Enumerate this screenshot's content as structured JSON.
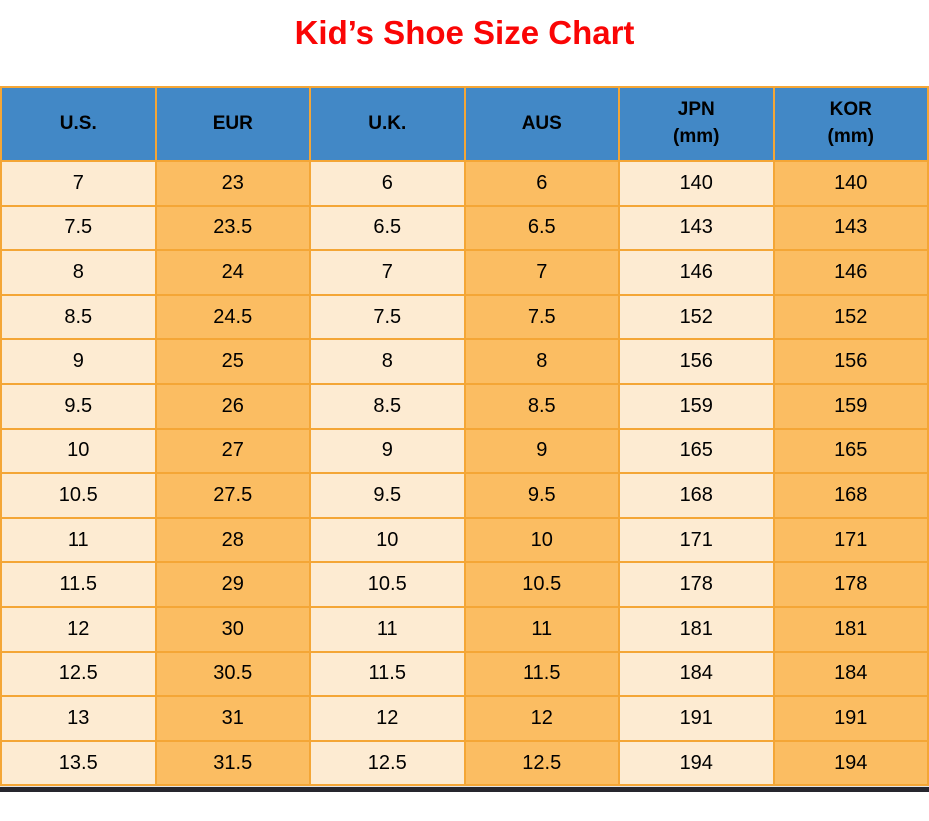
{
  "page": {
    "title": "Kid’s Shoe Size Chart"
  },
  "chart_data": {
    "type": "table",
    "title": "Kid’s Shoe Size Chart",
    "columns": [
      {
        "label": "U.S.",
        "unit": ""
      },
      {
        "label": "EUR",
        "unit": ""
      },
      {
        "label": "U.K.",
        "unit": ""
      },
      {
        "label": "AUS",
        "unit": ""
      },
      {
        "label": "JPN",
        "unit": "(mm)"
      },
      {
        "label": "KOR",
        "unit": "(mm)"
      }
    ],
    "rows": [
      [
        "7",
        "23",
        "6",
        "6",
        "140",
        "140"
      ],
      [
        "7.5",
        "23.5",
        "6.5",
        "6.5",
        "143",
        "143"
      ],
      [
        "8",
        "24",
        "7",
        "7",
        "146",
        "146"
      ],
      [
        "8.5",
        "24.5",
        "7.5",
        "7.5",
        "152",
        "152"
      ],
      [
        "9",
        "25",
        "8",
        "8",
        "156",
        "156"
      ],
      [
        "9.5",
        "26",
        "8.5",
        "8.5",
        "159",
        "159"
      ],
      [
        "10",
        "27",
        "9",
        "9",
        "165",
        "165"
      ],
      [
        "10.5",
        "27.5",
        "9.5",
        "9.5",
        "168",
        "168"
      ],
      [
        "11",
        "28",
        "10",
        "10",
        "171",
        "171"
      ],
      [
        "11.5",
        "29",
        "10.5",
        "10.5",
        "178",
        "178"
      ],
      [
        "12",
        "30",
        "11",
        "11",
        "181",
        "181"
      ],
      [
        "12.5",
        "30.5",
        "11.5",
        "11.5",
        "184",
        "184"
      ],
      [
        "13",
        "31",
        "12",
        "12",
        "191",
        "191"
      ],
      [
        "13.5",
        "31.5",
        "12.5",
        "12.5",
        "194",
        "194"
      ]
    ]
  },
  "colors": {
    "title_red": "#FA0505",
    "header_blue": "#4288C6",
    "cell_cream": "#FDEBD2",
    "cell_orange": "#FBBD62",
    "border_orange": "#F4A636",
    "bottom_bar_dark": "#26262E",
    "text_black": "#000000"
  }
}
